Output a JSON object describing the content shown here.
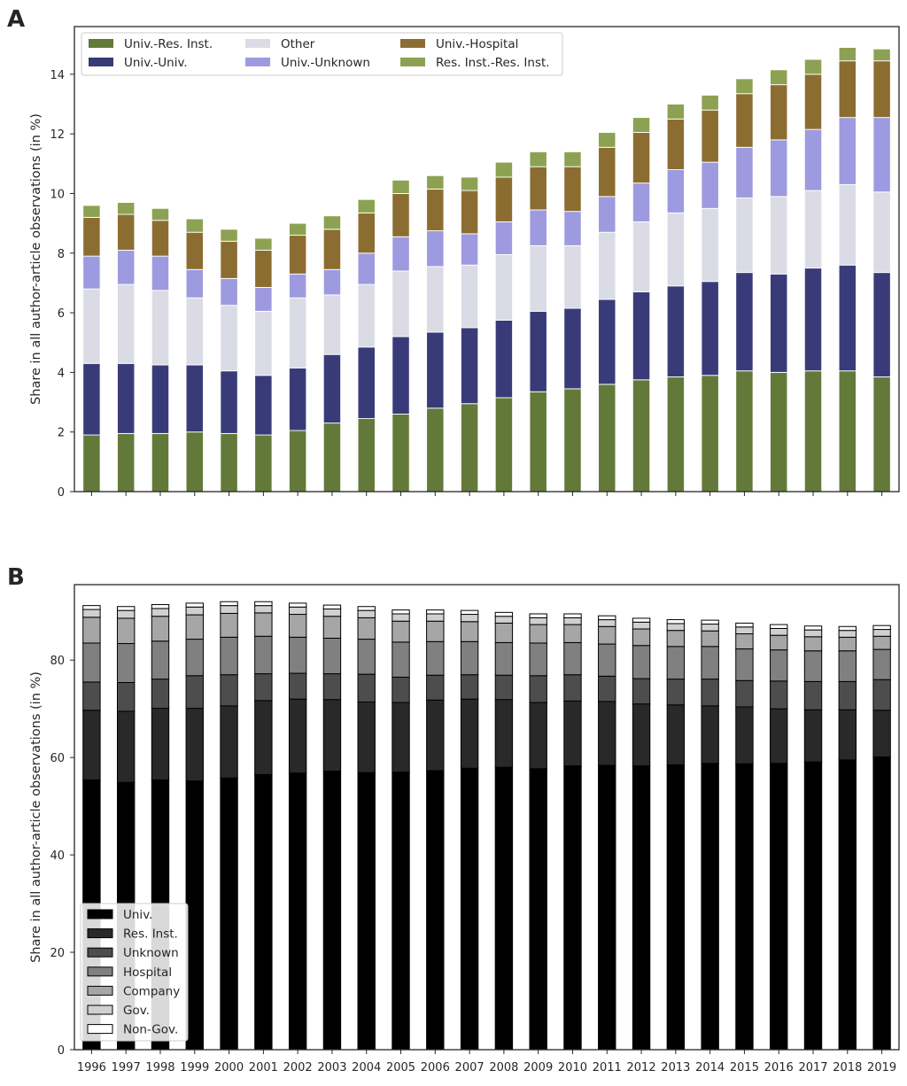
{
  "chart_data": [
    {
      "type": "bar",
      "stacked": true,
      "panel_label": "A",
      "title": "",
      "xlabel": "",
      "ylabel": "Share in all author-article observations (in %)",
      "ylim": [
        0,
        15.6
      ],
      "yticks": [
        0,
        2,
        4,
        6,
        8,
        10,
        12,
        14
      ],
      "grid": false,
      "legend_position": "top-left",
      "legend_columns": 3,
      "categories": [
        "1996",
        "1997",
        "1998",
        "1999",
        "2000",
        "2001",
        "2002",
        "2003",
        "2004",
        "2005",
        "2006",
        "2007",
        "2008",
        "2009",
        "2010",
        "2011",
        "2012",
        "2013",
        "2014",
        "2015",
        "2016",
        "2017",
        "2018",
        "2019"
      ],
      "series": [
        {
          "name": "Univ.-Res. Inst.",
          "color": "#637939",
          "values": [
            1.9,
            1.95,
            1.95,
            2.0,
            1.95,
            1.9,
            2.05,
            2.3,
            2.45,
            2.6,
            2.8,
            2.95,
            3.15,
            3.35,
            3.45,
            3.6,
            3.75,
            3.85,
            3.9,
            4.05,
            4.0,
            4.05,
            4.05,
            3.85
          ]
        },
        {
          "name": "Univ.-Univ.",
          "color": "#393b79",
          "values": [
            2.4,
            2.35,
            2.3,
            2.25,
            2.1,
            2.0,
            2.1,
            2.3,
            2.4,
            2.6,
            2.55,
            2.55,
            2.6,
            2.7,
            2.7,
            2.85,
            2.95,
            3.05,
            3.15,
            3.3,
            3.3,
            3.45,
            3.55,
            3.5
          ]
        },
        {
          "name": "Other",
          "color": "#dadbe5",
          "values": [
            2.5,
            2.65,
            2.5,
            2.25,
            2.2,
            2.15,
            2.35,
            2.0,
            2.1,
            2.2,
            2.2,
            2.1,
            2.2,
            2.2,
            2.1,
            2.25,
            2.35,
            2.45,
            2.45,
            2.5,
            2.6,
            2.6,
            2.7,
            2.7
          ]
        },
        {
          "name": "Univ.-Unknown",
          "color": "#9e9ae0",
          "values": [
            1.1,
            1.15,
            1.15,
            0.95,
            0.9,
            0.8,
            0.8,
            0.85,
            1.05,
            1.15,
            1.2,
            1.05,
            1.1,
            1.2,
            1.15,
            1.2,
            1.3,
            1.45,
            1.55,
            1.7,
            1.9,
            2.05,
            2.25,
            2.5
          ]
        },
        {
          "name": "Univ.-Hospital",
          "color": "#8c6d31",
          "values": [
            1.3,
            1.2,
            1.2,
            1.25,
            1.25,
            1.25,
            1.3,
            1.35,
            1.35,
            1.45,
            1.4,
            1.45,
            1.5,
            1.45,
            1.5,
            1.65,
            1.7,
            1.7,
            1.75,
            1.8,
            1.85,
            1.85,
            1.9,
            1.9
          ]
        },
        {
          "name": "Res. Inst.-Res. Inst.",
          "color": "#8ca252",
          "values": [
            0.4,
            0.4,
            0.4,
            0.45,
            0.4,
            0.4,
            0.4,
            0.45,
            0.45,
            0.45,
            0.45,
            0.45,
            0.5,
            0.5,
            0.5,
            0.5,
            0.5,
            0.5,
            0.5,
            0.5,
            0.5,
            0.5,
            0.45,
            0.4
          ]
        }
      ]
    },
    {
      "type": "bar",
      "stacked": true,
      "panel_label": "B",
      "title": "",
      "xlabel": "",
      "ylabel": "Share in all author-article observations (in %)",
      "ylim": [
        0,
        95.5
      ],
      "yticks": [
        0,
        20,
        40,
        60,
        80
      ],
      "grid": false,
      "legend_position": "bottom-left",
      "legend_columns": 1,
      "categories": [
        "1996",
        "1997",
        "1998",
        "1999",
        "2000",
        "2001",
        "2002",
        "2003",
        "2004",
        "2005",
        "2006",
        "2007",
        "2008",
        "2009",
        "2010",
        "2011",
        "2012",
        "2013",
        "2014",
        "2015",
        "2016",
        "2017",
        "2018",
        "2019"
      ],
      "series": [
        {
          "name": "Univ.",
          "color": "#000000",
          "values": [
            55.4,
            54.9,
            55.4,
            55.2,
            55.8,
            56.5,
            56.8,
            57.2,
            56.9,
            57.0,
            57.3,
            57.8,
            58.0,
            57.7,
            58.3,
            58.4,
            58.3,
            58.5,
            58.8,
            58.7,
            58.8,
            59.1,
            59.5,
            60.1
          ]
        },
        {
          "name": "Res. Inst.",
          "color": "#292929",
          "values": [
            14.3,
            14.6,
            14.7,
            14.9,
            14.8,
            15.2,
            15.2,
            14.7,
            14.5,
            14.3,
            14.5,
            14.2,
            13.9,
            13.6,
            13.3,
            13.1,
            12.7,
            12.3,
            11.8,
            11.7,
            11.2,
            10.7,
            10.3,
            9.6
          ]
        },
        {
          "name": "Unknown",
          "color": "#4d4d4d",
          "values": [
            5.8,
            5.9,
            6.0,
            6.7,
            6.4,
            5.5,
            5.3,
            5.3,
            5.7,
            5.2,
            5.1,
            5.0,
            5.0,
            5.5,
            5.4,
            5.2,
            5.2,
            5.3,
            5.5,
            5.4,
            5.7,
            5.8,
            5.8,
            6.3
          ]
        },
        {
          "name": "Hospital",
          "color": "#808080",
          "values": [
            8.0,
            8.0,
            7.8,
            7.5,
            7.7,
            7.7,
            7.4,
            7.3,
            7.2,
            7.2,
            6.9,
            6.8,
            6.7,
            6.7,
            6.6,
            6.6,
            6.8,
            6.7,
            6.7,
            6.5,
            6.4,
            6.3,
            6.3,
            6.2
          ]
        },
        {
          "name": "Company",
          "color": "#a6a6a6",
          "values": [
            5.3,
            5.2,
            5.1,
            5.0,
            4.9,
            4.8,
            4.7,
            4.5,
            4.4,
            4.3,
            4.2,
            4.1,
            4.0,
            3.8,
            3.7,
            3.6,
            3.4,
            3.3,
            3.2,
            3.1,
            3.0,
            2.9,
            2.8,
            2.7
          ]
        },
        {
          "name": "Gov.",
          "color": "#d0d0d0",
          "values": [
            1.6,
            1.6,
            1.6,
            1.6,
            1.6,
            1.5,
            1.5,
            1.5,
            1.5,
            1.5,
            1.5,
            1.5,
            1.4,
            1.4,
            1.4,
            1.4,
            1.4,
            1.4,
            1.4,
            1.4,
            1.4,
            1.4,
            1.4,
            1.4
          ]
        },
        {
          "name": "Non-Gov.",
          "color": "#ffffff",
          "values": [
            0.8,
            0.8,
            0.8,
            0.8,
            0.8,
            0.8,
            0.8,
            0.8,
            0.8,
            0.8,
            0.8,
            0.8,
            0.8,
            0.8,
            0.8,
            0.8,
            0.8,
            0.8,
            0.8,
            0.8,
            0.8,
            0.8,
            0.8,
            0.8
          ]
        }
      ]
    }
  ]
}
